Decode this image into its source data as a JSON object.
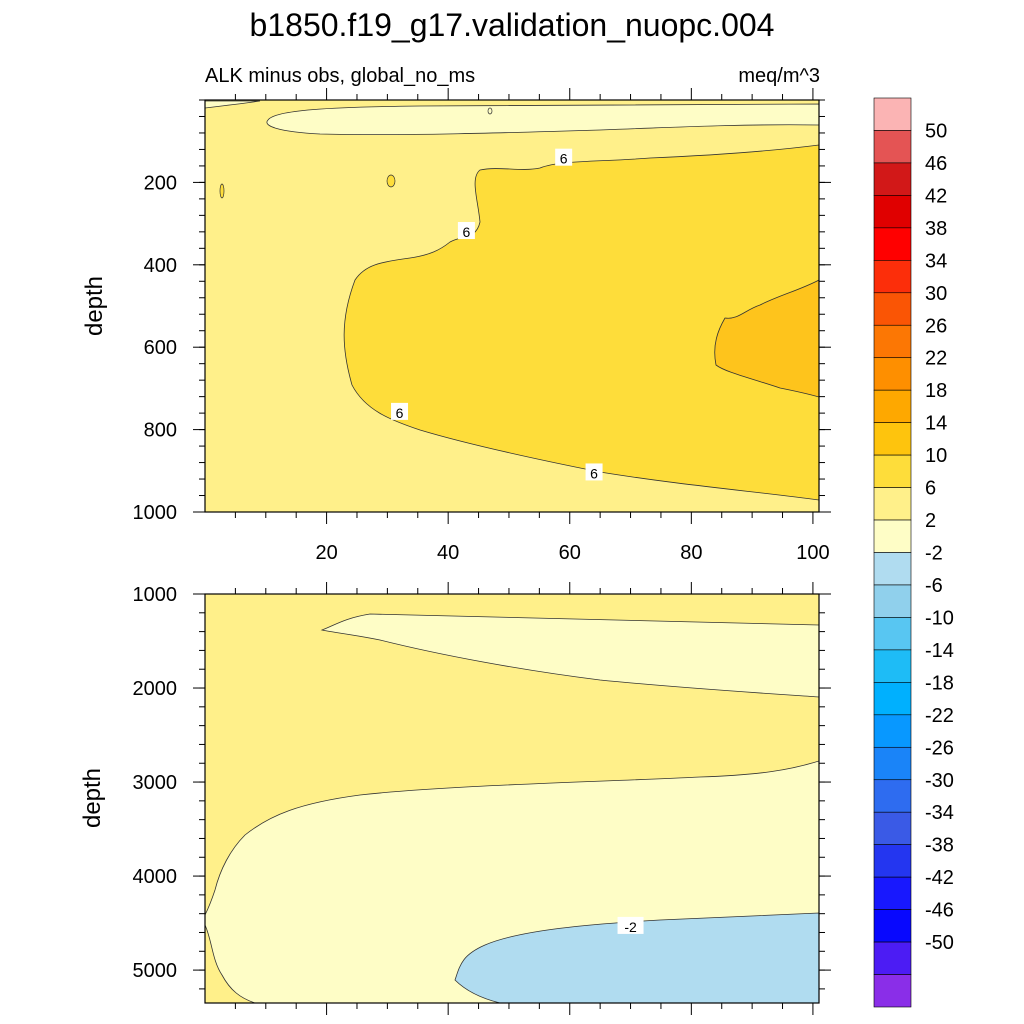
{
  "chart_data": {
    "type": "contour",
    "title": "b1850.f19_g17.validation_nuopc.004",
    "left_subtitle": "ALK minus obs, global_no_ms",
    "right_subtitle": "meq/m^3",
    "panels": [
      {
        "name": "upper",
        "ylabel": "depth",
        "xlim": [
          0,
          101
        ],
        "ylim": [
          0,
          1000
        ],
        "y_reversed": true,
        "xticks": [
          20,
          40,
          60,
          80,
          100
        ],
        "xtick_labels": [
          "20",
          "40",
          "60",
          "80",
          "100"
        ],
        "yticks": [
          200,
          400,
          600,
          800,
          1000
        ],
        "ytick_labels": [
          "200",
          "400",
          "600",
          "800",
          "1000"
        ],
        "background_level": "2 to 6",
        "contour_labels": [
          {
            "text": "6",
            "x": 59,
            "y": 140
          },
          {
            "text": "6",
            "x": 43,
            "y": 318
          },
          {
            "text": "6",
            "x": 32,
            "y": 757
          },
          {
            "text": "6",
            "x": 64,
            "y": 904
          }
        ]
      },
      {
        "name": "lower",
        "ylabel": "depth",
        "xlim": [
          0,
          101
        ],
        "ylim": [
          1000,
          5350
        ],
        "y_reversed": true,
        "yticks": [
          1000,
          2000,
          3000,
          4000,
          5000
        ],
        "ytick_labels": [
          "1000",
          "2000",
          "3000",
          "4000",
          "5000"
        ],
        "background_level": "2 to 6",
        "contour_labels": [
          {
            "text": "-2",
            "x": 70,
            "y": 4530
          }
        ]
      }
    ],
    "colorbar": {
      "labels": [
        "50",
        "46",
        "42",
        "38",
        "34",
        "30",
        "26",
        "22",
        "18",
        "14",
        "10",
        "6",
        "2",
        "-2",
        "-6",
        "-10",
        "-14",
        "-18",
        "-22",
        "-26",
        "-30",
        "-34",
        "-38",
        "-42",
        "-46",
        "-50"
      ],
      "colors": [
        "#fbb4b4",
        "#e45454",
        "#d21818",
        "#e00000",
        "#ff0000",
        "#fc2e0a",
        "#fa5505",
        "#fc7704",
        "#fe8f00",
        "#fea800",
        "#fec40d",
        "#fedd3a",
        "#fff08a",
        "#fefdc6",
        "#b0dcf0",
        "#90d0ec",
        "#58c6f2",
        "#1ebcf6",
        "#00b0fe",
        "#0898ff",
        "#1a84f8",
        "#2e6cf0",
        "#3a5ae6",
        "#2436f0",
        "#1818fe",
        "#0808fe",
        "#4c1cf4",
        "#8a2ee8"
      ]
    },
    "fill_colors": {
      "level_m2_2": "#fefdc6",
      "level_2_6": "#fff08a",
      "level_6_10": "#fedd3a",
      "level_10_14": "#fec41c",
      "level_m6_m2": "#b0dcf0"
    }
  }
}
